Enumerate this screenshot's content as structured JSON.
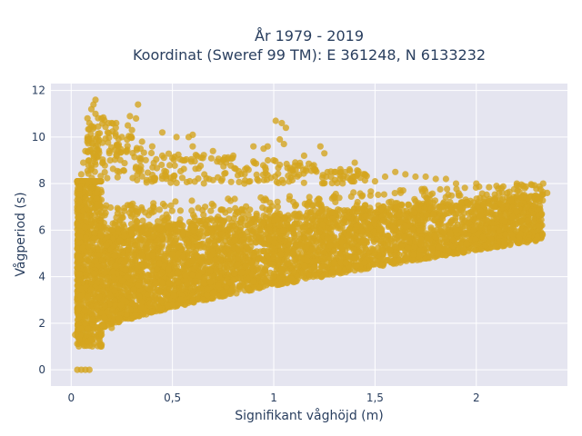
{
  "chart_data": {
    "type": "scatter",
    "title_lines": [
      "År 1979 - 2019",
      "Koordinat (Sweref 99 TM): E 361248, N 6133232"
    ],
    "xlabel": "Signifikant våghöjd (m)",
    "ylabel": "Vågperiod (s)",
    "xlim": [
      -0.1,
      2.45
    ],
    "ylim": [
      -0.7,
      12.3
    ],
    "x_ticks": [
      0,
      0.5,
      1,
      1.5,
      2
    ],
    "x_tick_labels": [
      "0",
      "0,5",
      "1",
      "1,5",
      "2"
    ],
    "y_ticks": [
      0,
      2,
      4,
      6,
      8,
      10,
      12
    ],
    "y_tick_labels": [
      "0",
      "2",
      "4",
      "6",
      "8",
      "10",
      "12"
    ],
    "grid": true,
    "marker_color": "#d4a51f",
    "plot_background": "#e5e5f0",
    "points": [
      [
        0.02,
        1.5
      ],
      [
        0.03,
        0.0
      ],
      [
        0.05,
        0.0
      ],
      [
        0.07,
        0.0
      ],
      [
        0.09,
        0.0
      ],
      [
        0.04,
        1.3
      ],
      [
        0.06,
        1.1
      ],
      [
        0.08,
        1.2
      ],
      [
        0.1,
        1.3
      ],
      [
        0.15,
        1.5
      ],
      [
        0.2,
        1.8
      ],
      [
        0.3,
        2.2
      ],
      [
        0.4,
        2.5
      ],
      [
        0.5,
        2.8
      ],
      [
        0.6,
        3.0
      ],
      [
        0.7,
        3.3
      ],
      [
        0.8,
        3.5
      ],
      [
        0.9,
        3.8
      ],
      [
        1.0,
        4.0
      ],
      [
        1.1,
        4.2
      ],
      [
        1.2,
        4.4
      ],
      [
        1.3,
        4.6
      ],
      [
        1.4,
        4.8
      ],
      [
        1.5,
        5.0
      ],
      [
        1.6,
        5.3
      ],
      [
        1.7,
        5.5
      ],
      [
        1.8,
        5.7
      ],
      [
        1.9,
        6.0
      ],
      [
        2.0,
        6.2
      ],
      [
        2.1,
        6.5
      ],
      [
        2.2,
        6.8
      ],
      [
        2.25,
        7.0
      ],
      [
        2.3,
        7.3
      ],
      [
        2.35,
        7.6
      ],
      [
        2.33,
        8.0
      ],
      [
        2.2,
        8.0
      ],
      [
        2.1,
        7.9
      ],
      [
        2.0,
        8.0
      ],
      [
        1.9,
        8.0
      ],
      [
        1.8,
        8.2
      ],
      [
        1.7,
        8.3
      ],
      [
        1.6,
        8.5
      ],
      [
        1.5,
        8.1
      ],
      [
        1.4,
        8.3
      ],
      [
        1.3,
        8.5
      ],
      [
        1.2,
        8.6
      ],
      [
        1.1,
        8.4
      ],
      [
        1.0,
        9.0
      ],
      [
        0.95,
        9.5
      ],
      [
        0.9,
        9.6
      ],
      [
        0.8,
        9.2
      ],
      [
        0.75,
        9.0
      ],
      [
        0.7,
        9.4
      ],
      [
        0.65,
        9.1
      ],
      [
        0.6,
        9.6
      ],
      [
        0.55,
        9.0
      ],
      [
        0.5,
        9.1
      ],
      [
        0.45,
        9.2
      ],
      [
        0.4,
        9.6
      ],
      [
        0.35,
        9.8
      ],
      [
        0.3,
        10.3
      ],
      [
        0.28,
        10.5
      ],
      [
        0.25,
        10.0
      ],
      [
        0.22,
        10.4
      ],
      [
        0.2,
        10.6
      ],
      [
        0.18,
        10.2
      ],
      [
        0.15,
        10.8
      ],
      [
        0.13,
        10.0
      ],
      [
        0.12,
        11.0
      ],
      [
        0.1,
        11.2
      ],
      [
        0.11,
        11.4
      ],
      [
        0.12,
        11.6
      ],
      [
        0.09,
        10.6
      ],
      [
        0.08,
        9.8
      ],
      [
        0.07,
        9.4
      ],
      [
        0.06,
        8.9
      ],
      [
        0.05,
        8.4
      ],
      [
        0.04,
        7.8
      ],
      [
        0.33,
        11.4
      ],
      [
        0.29,
        10.9
      ],
      [
        0.32,
        10.8
      ],
      [
        0.45,
        10.2
      ],
      [
        0.52,
        10.0
      ],
      [
        0.58,
        10.0
      ],
      [
        0.6,
        10.1
      ],
      [
        1.01,
        10.7
      ],
      [
        1.04,
        10.6
      ],
      [
        1.06,
        10.4
      ],
      [
        1.03,
        9.9
      ],
      [
        1.05,
        9.7
      ],
      [
        0.97,
        9.6
      ],
      [
        1.25,
        9.3
      ],
      [
        1.23,
        9.6
      ],
      [
        1.15,
        9.2
      ],
      [
        1.4,
        8.9
      ],
      [
        1.45,
        8.4
      ],
      [
        1.55,
        8.3
      ],
      [
        1.65,
        8.4
      ],
      [
        1.75,
        8.3
      ],
      [
        1.85,
        8.2
      ]
    ]
  }
}
